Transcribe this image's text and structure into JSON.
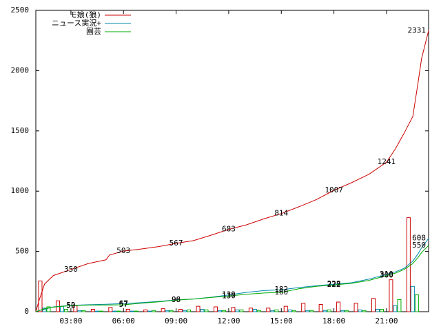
{
  "chart_data": {
    "type": "line",
    "x": [
      1,
      1.2,
      1.5,
      2,
      3,
      4,
      5,
      5.2,
      6,
      7,
      8,
      9,
      10,
      11,
      12,
      13,
      14,
      15,
      16,
      17,
      18,
      19,
      20,
      21,
      21.5,
      22,
      22.5,
      22.8,
      23,
      23.4
    ],
    "series": [
      {
        "name": "モ娘(狼)",
        "color": "#cc0000",
        "values": [
          0,
          100,
          230,
          300,
          350,
          400,
          430,
          470,
          503,
          520,
          540,
          567,
          590,
          635,
          683,
          720,
          770,
          814,
          870,
          930,
          1007,
          1070,
          1140,
          1241,
          1350,
          1480,
          1620,
          1900,
          2100,
          2331
        ],
        "bar_values": [
          255,
          90,
          50,
          20,
          35,
          20,
          15,
          25,
          20,
          45,
          40,
          35,
          30,
          30,
          45,
          70,
          60,
          80,
          70,
          110,
          265,
          780
        ]
      },
      {
        "name": "ニュース実況+",
        "color": "#0088aa",
        "values": [
          0,
          10,
          20,
          40,
          52,
          58,
          62,
          63,
          67,
          75,
          85,
          98,
          105,
          120,
          139,
          160,
          175,
          182,
          200,
          215,
          228,
          240,
          270,
          310,
          330,
          360,
          420,
          480,
          530,
          608
        ],
        "bar_values": [
          30,
          45,
          10,
          5,
          5,
          5,
          5,
          10,
          10,
          20,
          10,
          15,
          20,
          10,
          15,
          10,
          10,
          10,
          15,
          20,
          50,
          210
        ]
      },
      {
        "name": "園芸",
        "color": "#00aa00",
        "values": [
          0,
          10,
          25,
          38,
          50,
          55,
          56,
          56,
          57,
          70,
          82,
          96,
          105,
          118,
          130,
          145,
          155,
          160,
          190,
          210,
          222,
          235,
          260,
          300,
          320,
          350,
          400,
          450,
          490,
          550
        ],
        "bar_values": [
          40,
          20,
          10,
          5,
          5,
          5,
          10,
          10,
          15,
          15,
          10,
          15,
          10,
          15,
          10,
          10,
          15,
          10,
          10,
          20,
          100,
          140
        ]
      }
    ],
    "bar_x": [
      1,
      2,
      3,
      4,
      5,
      6,
      7,
      8,
      9,
      10,
      11,
      12,
      13,
      14,
      15,
      16,
      17,
      18,
      19,
      20,
      21,
      22
    ],
    "xlim": [
      1,
      23.4
    ],
    "xticks": [
      {
        "value": 3,
        "label": "03:00"
      },
      {
        "value": 6,
        "label": "06:00"
      },
      {
        "value": 9,
        "label": "09:00"
      },
      {
        "value": 12,
        "label": "12:00"
      },
      {
        "value": 15,
        "label": "15:00"
      },
      {
        "value": 18,
        "label": "18:00"
      },
      {
        "value": 21,
        "label": "21:00"
      }
    ],
    "ylim": [
      0,
      2500
    ],
    "yticks": [
      0,
      500,
      1000,
      1500,
      2000,
      2500
    ],
    "legend": "top-left"
  }
}
